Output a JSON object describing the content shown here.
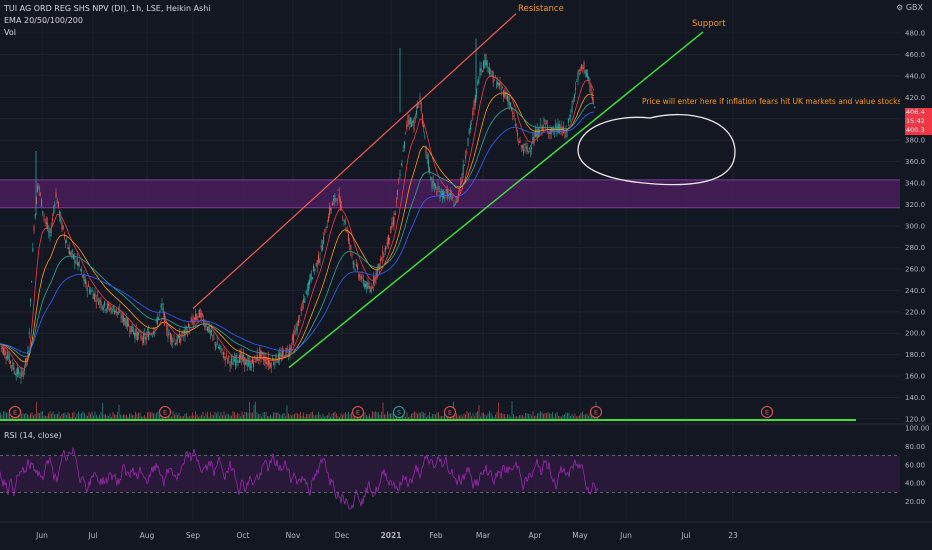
{
  "legend": {
    "symbol_line": "TUI AG ORD REG SHS NPV (DI), 1h, LSE, Heikin Ashi",
    "ema_line": "EMA 20/50/100/200",
    "vol_line": "Vol"
  },
  "currency_button": "GBX",
  "rsi": {
    "label": "RSI (14, close)",
    "axis_ticks": [
      "100.00",
      "80.00",
      "60.00",
      "40.00",
      "20.00"
    ],
    "upper_band": 70,
    "lower_band": 30
  },
  "price_axis": {
    "ticks": [
      "480.0",
      "460.0",
      "440.0",
      "420.0",
      "380.0",
      "360.0",
      "340.0",
      "320.0",
      "300.0",
      "280.0",
      "260.0",
      "240.0",
      "220.0",
      "200.0",
      "180.0",
      "160.0",
      "140.0",
      "120.0"
    ],
    "last_price_tags": [
      "406.4",
      "15:42",
      "400.3"
    ]
  },
  "time_axis": {
    "labels": [
      "Jun",
      "Jul",
      "Aug",
      "Sep",
      "Oct",
      "Nov",
      "Dec",
      "2021",
      "Feb",
      "Mar",
      "Apr",
      "May",
      "Jun",
      "Jul",
      "23"
    ]
  },
  "annotations": {
    "resistance": "Resistance",
    "support": "Support",
    "note": "Price will enter here if inflation fears hit UK markets and value stocks."
  },
  "event_markers": [
    "E",
    "E",
    "E",
    "S",
    "E",
    "E",
    "E"
  ],
  "colors": {
    "background": "#131722",
    "resistance_line": "#f15a52",
    "support_line": "#3bdc3b",
    "zone": "#4a1d5c",
    "rsi_line": "#9c27b0",
    "bull_candle": "#26a69a",
    "bear_candle": "#ef5350",
    "annotation_text": "#ff9800",
    "ema_colors": [
      "#f23645",
      "#ff9800",
      "#26a69a",
      "#2962ff"
    ]
  }
}
